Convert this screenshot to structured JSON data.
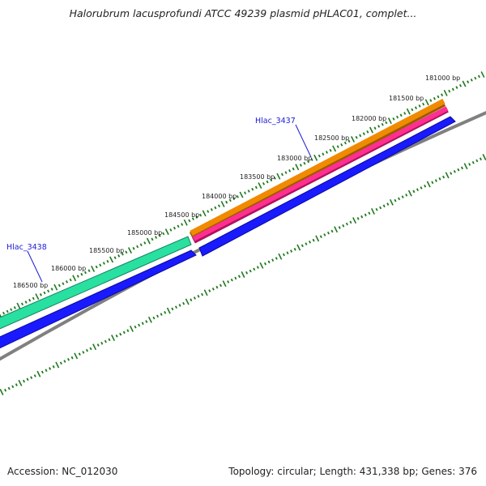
{
  "title": "Halorubrum lacusprofundi ATCC 49239 plasmid pHLAC01, complet...",
  "footer": {
    "accession": "Accession: NC_012030",
    "summary": "Topology: circular; Length: 431,338 bp; Genes: 376"
  },
  "colors": {
    "tick": "#1f7a1f",
    "backbone": "#808080",
    "cds_blue": "#1a1aff",
    "gene_orange": "#f08a00",
    "gene_pink": "#ff2f92",
    "gene_green": "#28e0a0",
    "label_blue": "#1b1bd4"
  },
  "ruler": {
    "labels": [
      "181000 bp",
      "181500 bp",
      "182000 bp",
      "182500 bp",
      "183000 bp",
      "183500 bp",
      "184000 bp",
      "184500 bp",
      "185000 bp",
      "185500 bp",
      "186000 bp",
      "186500 bp"
    ]
  },
  "genes": [
    {
      "label": "Hlac_3437",
      "icon": "gene-feature"
    },
    {
      "label": "Hlac_3438",
      "icon": "gene-feature"
    }
  ]
}
